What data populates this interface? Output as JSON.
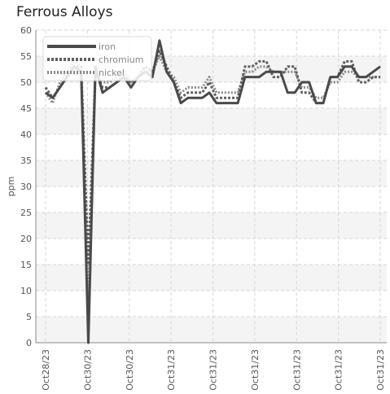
{
  "chart_data": {
    "type": "line",
    "title": "Ferrous Alloys",
    "ylabel": "ppm",
    "xlabel": "",
    "ylim": [
      0,
      60
    ],
    "yticks": [
      0,
      5,
      10,
      15,
      20,
      25,
      30,
      35,
      40,
      45,
      50,
      55,
      60
    ],
    "xtick_labels": [
      "Oct28/23",
      "Oct30/23",
      "Oct30/23",
      "Oct31/23",
      "Oct31/23",
      "Oct31/23",
      "Oct31/23",
      "Oct31/23",
      "Oct31/23"
    ],
    "x_count": 48,
    "grid": true,
    "legend_position": "top-left",
    "series": [
      {
        "name": "iron",
        "color": "#4a4a4a",
        "dash": "",
        "values": [
          48,
          47,
          49,
          51,
          53,
          52,
          0,
          53,
          48,
          49,
          50,
          51,
          49,
          51,
          52,
          51,
          58,
          52,
          50,
          46,
          47,
          47,
          47,
          48,
          46,
          46,
          46,
          46,
          51,
          51,
          51,
          52,
          52,
          52,
          48,
          48,
          50,
          50,
          46,
          46,
          51,
          51,
          53,
          53,
          51,
          51,
          52,
          53
        ]
      },
      {
        "name": "chromium",
        "color": "#606060",
        "dash": "3,2",
        "values": [
          49,
          47,
          49,
          51,
          53,
          53,
          15,
          52,
          49,
          49,
          50,
          51,
          50,
          51,
          53,
          52,
          56,
          53,
          50,
          47,
          48,
          48,
          48,
          50,
          47,
          47,
          47,
          47,
          53,
          53,
          54,
          54,
          51,
          51,
          53,
          53,
          48,
          48,
          46,
          46,
          51,
          51,
          54,
          54,
          50,
          50,
          51,
          51
        ]
      },
      {
        "name": "nickel",
        "color": "#8a8a8a",
        "dash": "2,2",
        "values": [
          48,
          46,
          50,
          52,
          54,
          53,
          8,
          51,
          50,
          50,
          51,
          52,
          50,
          51,
          52,
          52,
          55,
          52,
          51,
          48,
          49,
          49,
          49,
          51,
          48,
          48,
          48,
          48,
          52,
          52,
          53,
          53,
          52,
          52,
          52,
          52,
          49,
          49,
          47,
          47,
          50,
          50,
          52,
          52,
          51,
          51,
          51,
          51
        ]
      }
    ]
  }
}
